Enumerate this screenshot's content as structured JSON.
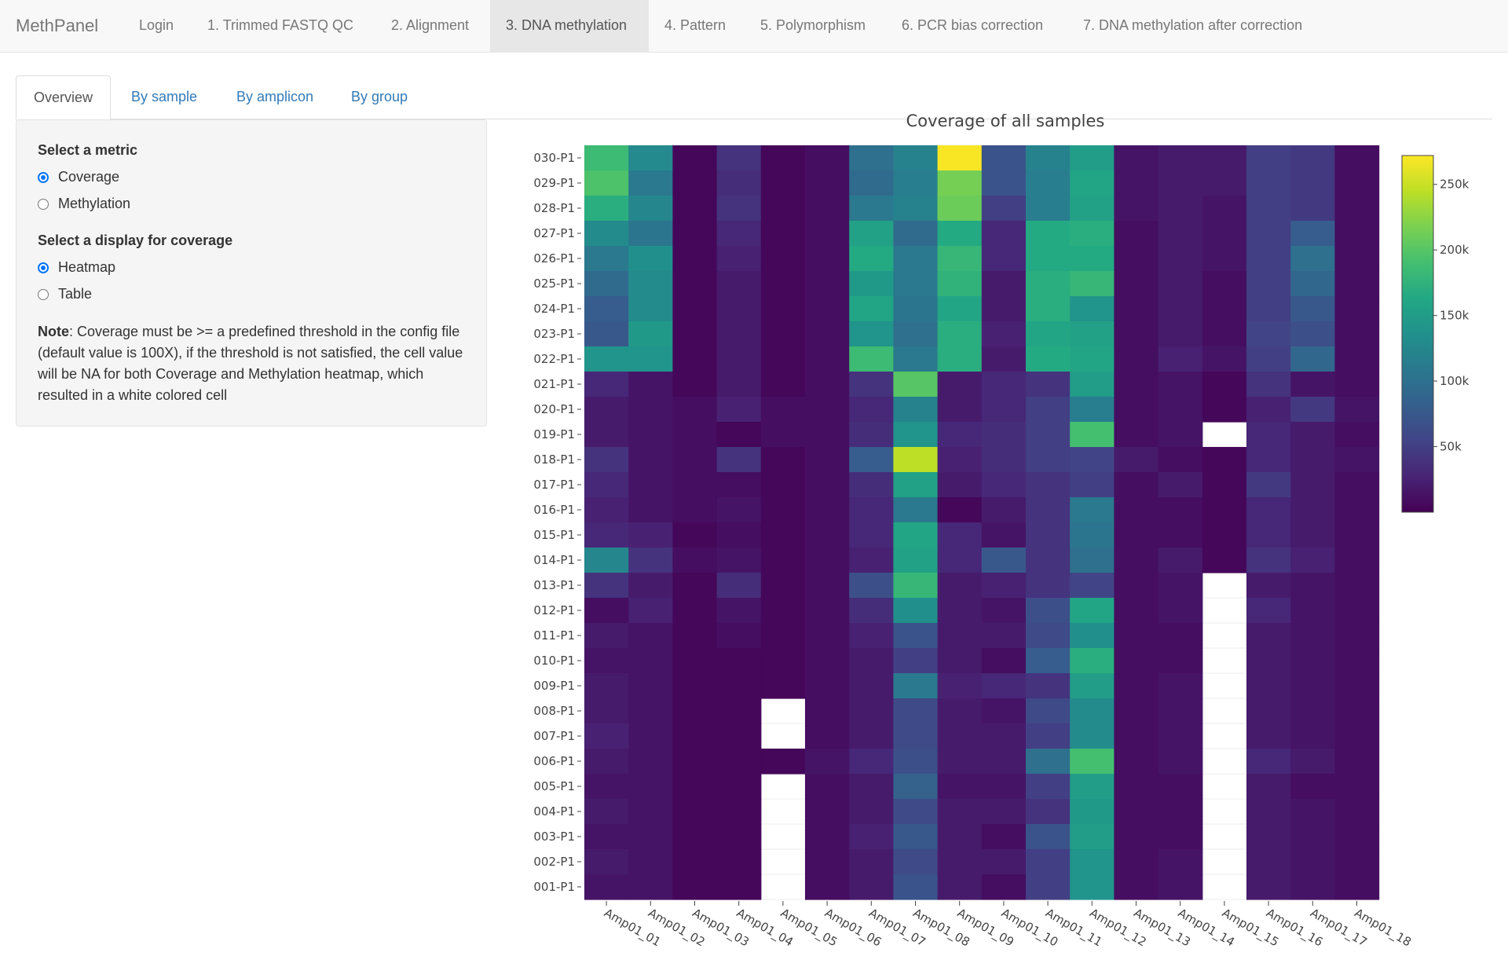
{
  "app": {
    "brand": "MethPanel"
  },
  "nav": {
    "items": [
      {
        "label": "Login"
      },
      {
        "label": "1. Trimmed FASTQ QC"
      },
      {
        "label": "2. Alignment"
      },
      {
        "label": "3. DNA methylation",
        "active": true
      },
      {
        "label": "4. Pattern"
      },
      {
        "label": "5. Polymorphism"
      },
      {
        "label": "6. PCR bias correction"
      },
      {
        "label": "7. DNA methylation after correction"
      }
    ]
  },
  "tabs": [
    {
      "label": "Overview",
      "active": true
    },
    {
      "label": "By sample"
    },
    {
      "label": "By amplicon"
    },
    {
      "label": "By group"
    }
  ],
  "panel": {
    "metric_label": "Select a metric",
    "metric_options": [
      "Coverage",
      "Methylation"
    ],
    "metric_selected": "Coverage",
    "display_label": "Select a display for coverage",
    "display_options": [
      "Heatmap",
      "Table"
    ],
    "display_selected": "Heatmap",
    "note_bold": "Note",
    "note_text": ": Coverage must be >= a predefined threshold in the config file (default value is 100X), if the threshold is not satisfied, the cell value will be NA for both Coverage and Methylation heatmap, which resulted in a white colored cell"
  },
  "chart_data": {
    "type": "heatmap",
    "title": "Coverage of all samples",
    "x": [
      "Amp01_01",
      "Amp01_02",
      "Amp01_03",
      "Amp01_04",
      "Amp01_05",
      "Amp01_06",
      "Amp01_07",
      "Amp01_08",
      "Amp01_09",
      "Amp01_10",
      "Amp01_11",
      "Amp01_12",
      "Amp01_13",
      "Amp01_14",
      "Amp01_15",
      "Amp01_16",
      "Amp01_17",
      "Amp01_18"
    ],
    "y": [
      "030-P1",
      "029-P1",
      "028-P1",
      "027-P1",
      "026-P1",
      "025-P1",
      "024-P1",
      "023-P1",
      "022-P1",
      "021-P1",
      "020-P1",
      "019-P1",
      "018-P1",
      "017-P1",
      "016-P1",
      "015-P1",
      "014-P1",
      "013-P1",
      "012-P1",
      "011-P1",
      "010-P1",
      "009-P1",
      "008-P1",
      "007-P1",
      "006-P1",
      "005-P1",
      "004-P1",
      "003-P1",
      "002-P1",
      "001-P1"
    ],
    "z": [
      [
        185,
        128,
        5,
        40,
        5,
        10,
        100,
        120,
        270,
        70,
        120,
        150,
        15,
        20,
        20,
        50,
        45,
        10
      ],
      [
        195,
        110,
        5,
        35,
        5,
        10,
        95,
        115,
        215,
        70,
        115,
        160,
        15,
        20,
        20,
        50,
        45,
        10
      ],
      [
        170,
        125,
        5,
        40,
        5,
        10,
        110,
        120,
        210,
        50,
        115,
        155,
        15,
        20,
        15,
        50,
        45,
        10
      ],
      [
        130,
        105,
        5,
        30,
        5,
        10,
        155,
        95,
        165,
        30,
        165,
        170,
        10,
        20,
        15,
        50,
        80,
        10
      ],
      [
        110,
        135,
        5,
        25,
        5,
        10,
        165,
        110,
        180,
        30,
        165,
        165,
        10,
        20,
        15,
        50,
        100,
        10
      ],
      [
        95,
        130,
        5,
        20,
        5,
        10,
        145,
        110,
        175,
        20,
        170,
        180,
        10,
        20,
        10,
        50,
        90,
        10
      ],
      [
        80,
        130,
        5,
        20,
        5,
        10,
        160,
        105,
        160,
        20,
        170,
        140,
        10,
        20,
        10,
        50,
        75,
        10
      ],
      [
        75,
        145,
        5,
        20,
        5,
        10,
        140,
        100,
        170,
        25,
        160,
        155,
        10,
        20,
        10,
        55,
        65,
        10
      ],
      [
        140,
        140,
        5,
        20,
        5,
        10,
        185,
        110,
        170,
        20,
        165,
        160,
        10,
        25,
        15,
        50,
        90,
        10
      ],
      [
        30,
        15,
        5,
        20,
        5,
        10,
        40,
        200,
        20,
        30,
        40,
        150,
        10,
        15,
        5,
        40,
        15,
        10
      ],
      [
        20,
        15,
        10,
        25,
        10,
        10,
        30,
        120,
        20,
        30,
        50,
        115,
        10,
        15,
        5,
        25,
        45,
        15
      ],
      [
        20,
        15,
        10,
        5,
        10,
        10,
        35,
        140,
        30,
        35,
        50,
        190,
        10,
        15,
        null,
        30,
        20,
        10
      ],
      [
        40,
        15,
        10,
        40,
        5,
        10,
        80,
        245,
        25,
        35,
        50,
        55,
        20,
        10,
        5,
        30,
        20,
        15
      ],
      [
        30,
        15,
        10,
        10,
        5,
        10,
        35,
        155,
        20,
        30,
        40,
        50,
        10,
        20,
        5,
        45,
        20,
        10
      ],
      [
        25,
        15,
        10,
        15,
        5,
        10,
        30,
        110,
        5,
        20,
        40,
        110,
        10,
        10,
        5,
        30,
        20,
        10
      ],
      [
        30,
        25,
        5,
        10,
        5,
        10,
        30,
        160,
        30,
        15,
        40,
        105,
        10,
        10,
        5,
        30,
        20,
        10
      ],
      [
        125,
        40,
        10,
        15,
        5,
        10,
        25,
        155,
        30,
        75,
        40,
        100,
        10,
        20,
        5,
        40,
        25,
        10
      ],
      [
        40,
        20,
        5,
        35,
        5,
        10,
        65,
        180,
        20,
        25,
        40,
        55,
        10,
        15,
        null,
        20,
        15,
        10
      ],
      [
        10,
        25,
        5,
        15,
        5,
        10,
        35,
        135,
        20,
        15,
        65,
        160,
        10,
        15,
        null,
        30,
        15,
        10
      ],
      [
        20,
        15,
        5,
        10,
        5,
        10,
        25,
        70,
        20,
        20,
        60,
        135,
        10,
        10,
        null,
        20,
        15,
        10
      ],
      [
        15,
        15,
        5,
        5,
        5,
        10,
        20,
        50,
        20,
        10,
        80,
        170,
        10,
        10,
        null,
        20,
        15,
        10
      ],
      [
        20,
        15,
        5,
        5,
        5,
        10,
        20,
        110,
        25,
        30,
        40,
        150,
        10,
        15,
        null,
        20,
        15,
        10
      ],
      [
        20,
        15,
        5,
        5,
        null,
        10,
        20,
        60,
        20,
        15,
        60,
        130,
        10,
        15,
        null,
        20,
        15,
        10
      ],
      [
        25,
        15,
        5,
        5,
        null,
        10,
        20,
        60,
        20,
        20,
        50,
        130,
        10,
        15,
        null,
        20,
        15,
        10
      ],
      [
        20,
        15,
        5,
        5,
        5,
        15,
        30,
        65,
        20,
        20,
        100,
        190,
        10,
        15,
        null,
        30,
        20,
        10
      ],
      [
        15,
        15,
        5,
        5,
        null,
        10,
        20,
        85,
        15,
        15,
        50,
        150,
        10,
        10,
        null,
        20,
        10,
        10
      ],
      [
        20,
        15,
        5,
        5,
        null,
        10,
        20,
        60,
        20,
        20,
        40,
        145,
        10,
        10,
        null,
        20,
        15,
        10
      ],
      [
        15,
        15,
        5,
        5,
        null,
        10,
        25,
        75,
        20,
        10,
        70,
        150,
        10,
        10,
        null,
        20,
        15,
        10
      ],
      [
        20,
        15,
        5,
        5,
        null,
        10,
        20,
        60,
        20,
        20,
        50,
        140,
        10,
        15,
        null,
        20,
        15,
        10
      ],
      [
        15,
        15,
        5,
        5,
        null,
        10,
        20,
        70,
        20,
        10,
        50,
        140,
        10,
        15,
        null,
        20,
        15,
        10
      ]
    ],
    "z_unit": "thousands",
    "colorscale": "viridis",
    "zlim": [
      0,
      272
    ],
    "colorbar_ticks": [
      "50k",
      "100k",
      "150k",
      "200k",
      "250k"
    ],
    "colorbar_tick_values": [
      50,
      100,
      150,
      200,
      250
    ],
    "na_color": "#ffffff"
  }
}
